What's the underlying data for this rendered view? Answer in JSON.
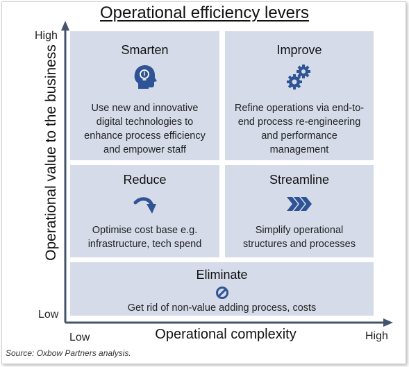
{
  "title": "Operational efficiency levers",
  "y_axis": {
    "label": "Operational value to the business",
    "high": "High",
    "low": "Low"
  },
  "x_axis": {
    "label": "Operational complexity",
    "low": "Low",
    "high": "High"
  },
  "quadrants": {
    "smarten": {
      "title": "Smarten",
      "icon": "head-lightbulb-icon",
      "description": "Use new and innovative digital technologies to enhance process efficiency and empower staff"
    },
    "improve": {
      "title": "Improve",
      "icon": "gears-icon",
      "description": "Refine operations via end-to-end process re-engineering and performance management"
    },
    "reduce": {
      "title": "Reduce",
      "icon": "curved-arrow-down-icon",
      "description": "Optimise cost base e.g. infrastructure, tech spend"
    },
    "streamline": {
      "title": "Streamline",
      "icon": "triple-chevron-right-icon",
      "description": "Simplify operational structures and processes"
    },
    "eliminate": {
      "title": "Eliminate",
      "icon": "prohibited-icon",
      "description": "Get rid of non-value adding process, costs"
    }
  },
  "source": "Source: Oxbow Partners analysis.",
  "colors": {
    "box": "#d5dbe8",
    "icon": "#2f5496",
    "axis": "#44546a"
  }
}
